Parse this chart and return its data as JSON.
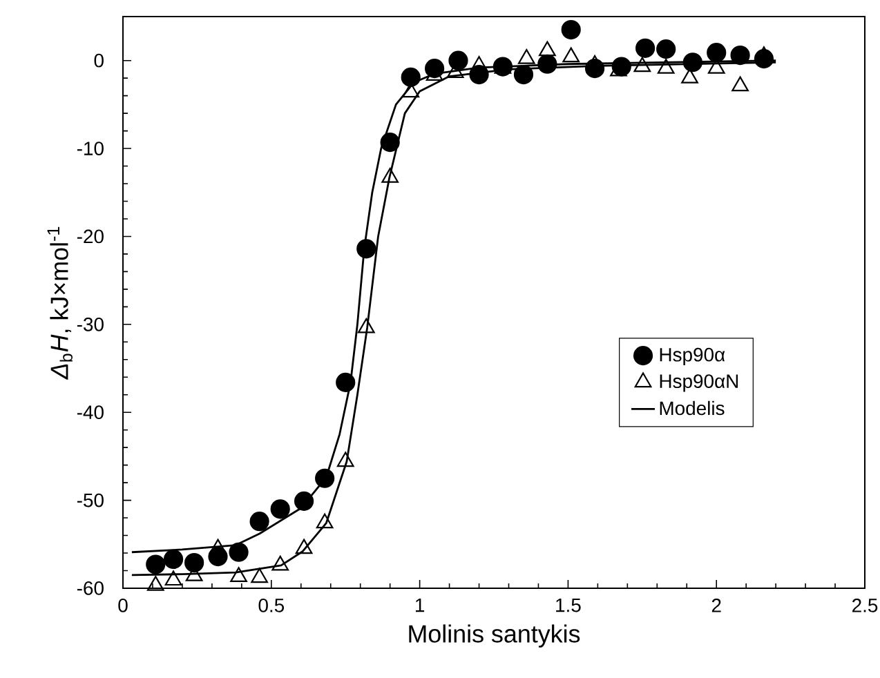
{
  "chart_data": {
    "type": "scatter",
    "xlabel": "Molinis santykis",
    "ylabel": "*Δ*$_{b}$*H*, kJ×mol$^{-1}$",
    "xlim": [
      0,
      2.5
    ],
    "ylim": [
      -60,
      5
    ],
    "xticks": [
      0,
      0.5,
      1,
      1.5,
      2,
      2.5
    ],
    "yticks": [
      -60,
      -50,
      -40,
      -30,
      -20,
      -10,
      0
    ],
    "grid": false,
    "legend": "right",
    "series": [
      {
        "name": "Hsp90α",
        "marker": "circle",
        "color": "#000000",
        "x": [
          0.11,
          0.17,
          0.24,
          0.32,
          0.39,
          0.46,
          0.53,
          0.61,
          0.68,
          0.75,
          0.82,
          0.9,
          0.97,
          1.05,
          1.13,
          1.2,
          1.28,
          1.35,
          1.43,
          1.51,
          1.59,
          1.68,
          1.76,
          1.83,
          1.92,
          2.0,
          2.08,
          2.16
        ],
        "values": [
          -57.3,
          -56.7,
          -57.1,
          -56.4,
          -55.9,
          -52.4,
          -51.0,
          -50.1,
          -47.5,
          -36.6,
          -21.4,
          -9.3,
          -1.9,
          -0.9,
          0.0,
          -1.6,
          -0.7,
          -1.6,
          -0.4,
          3.5,
          -0.9,
          -0.7,
          1.4,
          1.3,
          -0.2,
          0.9,
          0.6,
          0.2
        ]
      },
      {
        "name": "Hsp90αN",
        "marker": "triangle",
        "color": "#000000",
        "x": [
          0.11,
          0.17,
          0.24,
          0.32,
          0.39,
          0.46,
          0.53,
          0.61,
          0.68,
          0.75,
          0.82,
          0.9,
          0.97,
          1.05,
          1.12,
          1.2,
          1.28,
          1.36,
          1.43,
          1.51,
          1.59,
          1.67,
          1.75,
          1.83,
          1.91,
          2.0,
          2.08,
          2.16
        ],
        "values": [
          -59.7,
          -59.1,
          -58.6,
          -55.5,
          -58.7,
          -58.8,
          -57.4,
          -55.5,
          -52.6,
          -45.6,
          -30.4,
          -13.3,
          -3.6,
          -1.7,
          -1.4,
          -0.6,
          -0.9,
          0.2,
          1.1,
          0.4,
          -0.5,
          -1.2,
          -0.7,
          -0.9,
          -2.0,
          -0.9,
          -2.9,
          0.5
        ]
      },
      {
        "name": "Modelis",
        "type": "line",
        "marker": "none",
        "line_style": "solid",
        "color": "#000000",
        "x": [
          0.03,
          0.2,
          0.38,
          0.46,
          0.6,
          0.685,
          0.73,
          0.767,
          0.79,
          0.813,
          0.84,
          0.87,
          0.92,
          0.98,
          1.05,
          1.2,
          1.5,
          2.2
        ],
        "values": [
          -55.9,
          -55.6,
          -55.1,
          -53.8,
          -50.9,
          -47.4,
          -42.5,
          -36.6,
          -30,
          -21.4,
          -15,
          -10,
          -5,
          -2.5,
          -1.5,
          -0.8,
          -0.4,
          0
        ]
      },
      {
        "type": "line",
        "marker": "none",
        "line_style": "solid",
        "color": "#000000",
        "x": [
          0.03,
          0.2,
          0.38,
          0.533,
          0.606,
          0.685,
          0.754,
          0.79,
          0.823,
          0.86,
          0.898,
          0.95,
          1.0,
          1.1,
          1.3,
          1.6,
          2.2
        ],
        "values": [
          -58.5,
          -58.4,
          -58.2,
          -57.4,
          -55.8,
          -52.6,
          -45.6,
          -38,
          -30.4,
          -20,
          -13.3,
          -6,
          -3.5,
          -1.8,
          -1,
          -0.6,
          -0.2
        ]
      }
    ]
  }
}
